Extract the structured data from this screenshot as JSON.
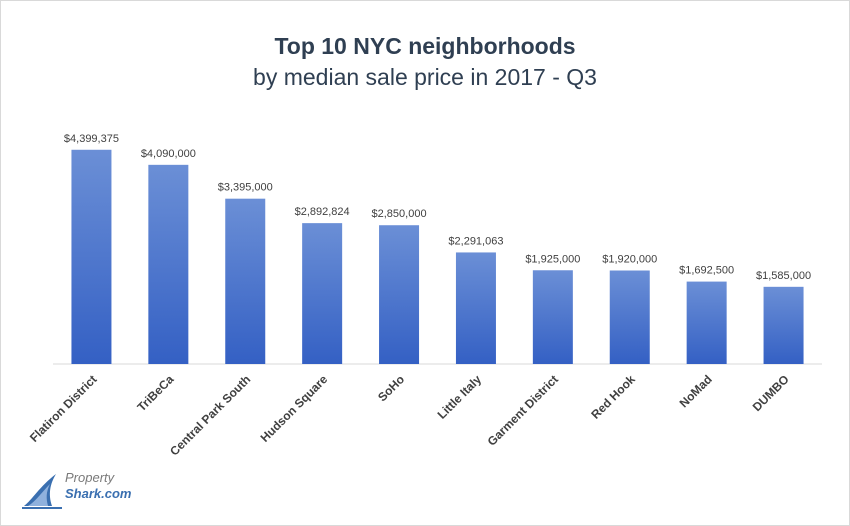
{
  "chart_data": {
    "type": "bar",
    "title": "Top 10 NYC neighborhoods",
    "subtitle": "by median sale price in 2017 - Q3",
    "categories": [
      "Flatiron District",
      "TriBeCa",
      "Central Park South",
      "Hudson Square",
      "SoHo",
      "Little Italy",
      "Garment District",
      "Red Hook",
      "NoMad",
      "DUMBO"
    ],
    "values": [
      4399375,
      4090000,
      3395000,
      2892824,
      2850000,
      2291063,
      1925000,
      1920000,
      1692500,
      1585000
    ],
    "data_labels": [
      "$4,399,375",
      "$4,090,000",
      "$3,395,000",
      "$2,892,824",
      "$2,850,000",
      "$2,291,063",
      "$1,925,000",
      "$1,920,000",
      "$1,692,500",
      "$1,585,000"
    ],
    "ylim": [
      0,
      4600000
    ],
    "grid": false,
    "legend": "none",
    "bar_color_top": "#6b8fd6",
    "bar_color_bottom": "#3460c4"
  },
  "logo": {
    "line1": "Property",
    "line2": "Shark.com"
  }
}
